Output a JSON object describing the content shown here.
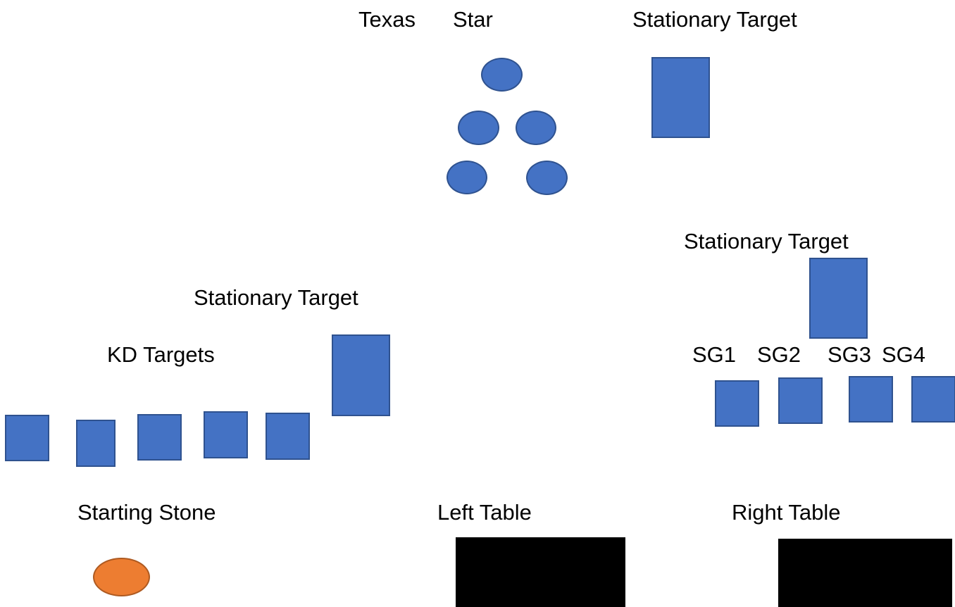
{
  "colors": {
    "target_fill": "#4472c4",
    "target_stroke": "#2f528f",
    "stone_fill": "#ed7d31",
    "stone_stroke": "#ae5a21",
    "table_fill": "#000000"
  },
  "labels": {
    "texas": "Texas",
    "star": "Star",
    "stationary_target_top": "Stationary Target",
    "stationary_target_right": "Stationary Target",
    "stationary_target_left": "Stationary Target",
    "kd_targets": "KD Targets",
    "sg1": "SG1",
    "sg2": "SG2",
    "sg3": "SG3",
    "sg4": "SG4",
    "starting_stone": "Starting Stone",
    "left_table": "Left Table",
    "right_table": "Right Table"
  }
}
